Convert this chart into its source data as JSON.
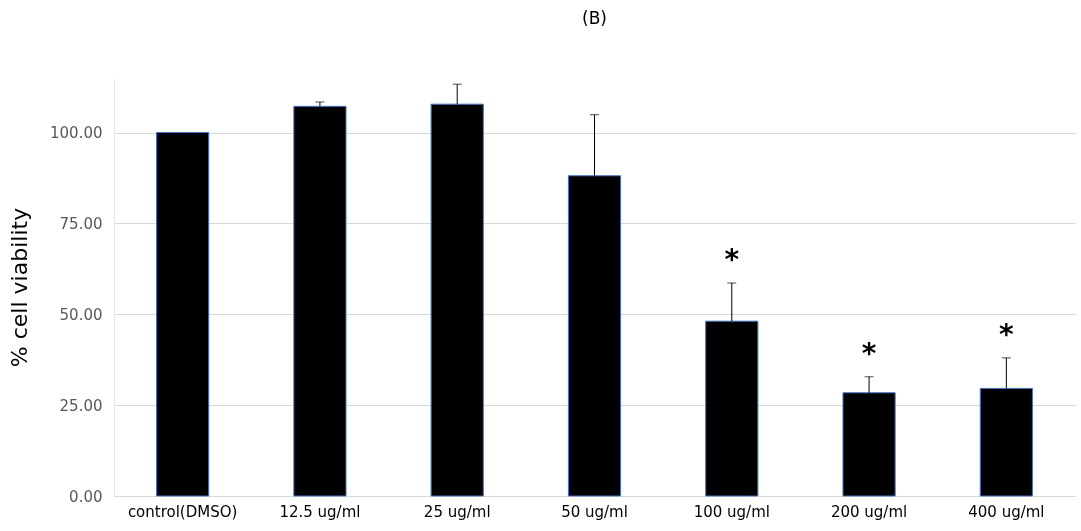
{
  "chart_data": {
    "type": "bar",
    "title": "(B)",
    "ylabel": "% cell viability",
    "categories": [
      "control(DMSO)",
      "12.5 ug/ml",
      "25 ug/ml",
      "50 ug/ml",
      "100 ug/ml",
      "200 ug/ml",
      "400 ug/ml"
    ],
    "values": [
      100,
      107.2,
      107.8,
      88.1,
      48.1,
      28.4,
      29.6
    ],
    "errors": [
      null,
      [
        107.2,
        108.4
      ],
      [
        107.8,
        113.3
      ],
      [
        88.1,
        104.9
      ],
      [
        48.1,
        58.6
      ],
      [
        28.4,
        32.8
      ],
      [
        29.6,
        38.0
      ]
    ],
    "color": "#000000",
    "ylim": [
      0,
      115
    ],
    "yticks": [
      {
        "value": 0,
        "label": "0.00"
      },
      {
        "value": 25,
        "label": "25.00"
      },
      {
        "value": 50,
        "label": "50.00"
      },
      {
        "value": 75,
        "label": "75.00"
      },
      {
        "value": 100,
        "label": "100.00"
      }
    ],
    "grid": "y",
    "value_labels": [
      null,
      null,
      null,
      null,
      "*",
      "*",
      "*"
    ]
  }
}
